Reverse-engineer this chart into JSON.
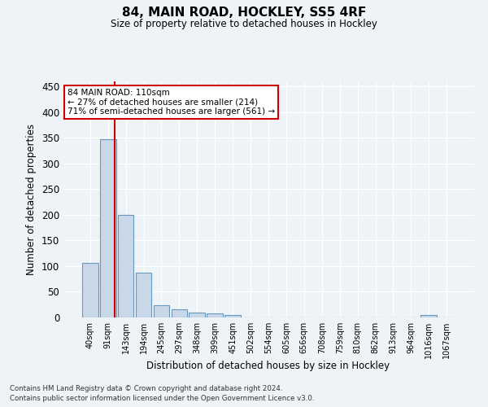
{
  "title": "84, MAIN ROAD, HOCKLEY, SS5 4RF",
  "subtitle": "Size of property relative to detached houses in Hockley",
  "xlabel": "Distribution of detached houses by size in Hockley",
  "ylabel": "Number of detached properties",
  "footnote1": "Contains HM Land Registry data © Crown copyright and database right 2024.",
  "footnote2": "Contains public sector information licensed under the Open Government Licence v3.0.",
  "bins": [
    "40sqm",
    "91sqm",
    "143sqm",
    "194sqm",
    "245sqm",
    "297sqm",
    "348sqm",
    "399sqm",
    "451sqm",
    "502sqm",
    "554sqm",
    "605sqm",
    "656sqm",
    "708sqm",
    "759sqm",
    "810sqm",
    "862sqm",
    "913sqm",
    "964sqm",
    "1016sqm",
    "1067sqm"
  ],
  "values": [
    107,
    347,
    200,
    88,
    24,
    16,
    9,
    8,
    5,
    0,
    0,
    0,
    0,
    0,
    0,
    0,
    0,
    0,
    0,
    5,
    0
  ],
  "bar_color": "#c8d8e8",
  "bar_edge_color": "#6699bb",
  "background_color": "#eef3f8",
  "grid_color": "#ffffff",
  "vline_color": "#cc0000",
  "annotation_text": "84 MAIN ROAD: 110sqm\n← 27% of detached houses are smaller (214)\n71% of semi-detached houses are larger (561) →",
  "annotation_box_color": "#ffffff",
  "annotation_box_edge": "#cc0000",
  "property_sqm": 110,
  "bin_edges_sqm": [
    40,
    91,
    143,
    194,
    245,
    297,
    348,
    399,
    451,
    502,
    554,
    605,
    656,
    708,
    759,
    810,
    862,
    913,
    964,
    1016,
    1067
  ],
  "ylim": [
    0,
    460
  ],
  "yticks": [
    0,
    50,
    100,
    150,
    200,
    250,
    300,
    350,
    400,
    450
  ]
}
